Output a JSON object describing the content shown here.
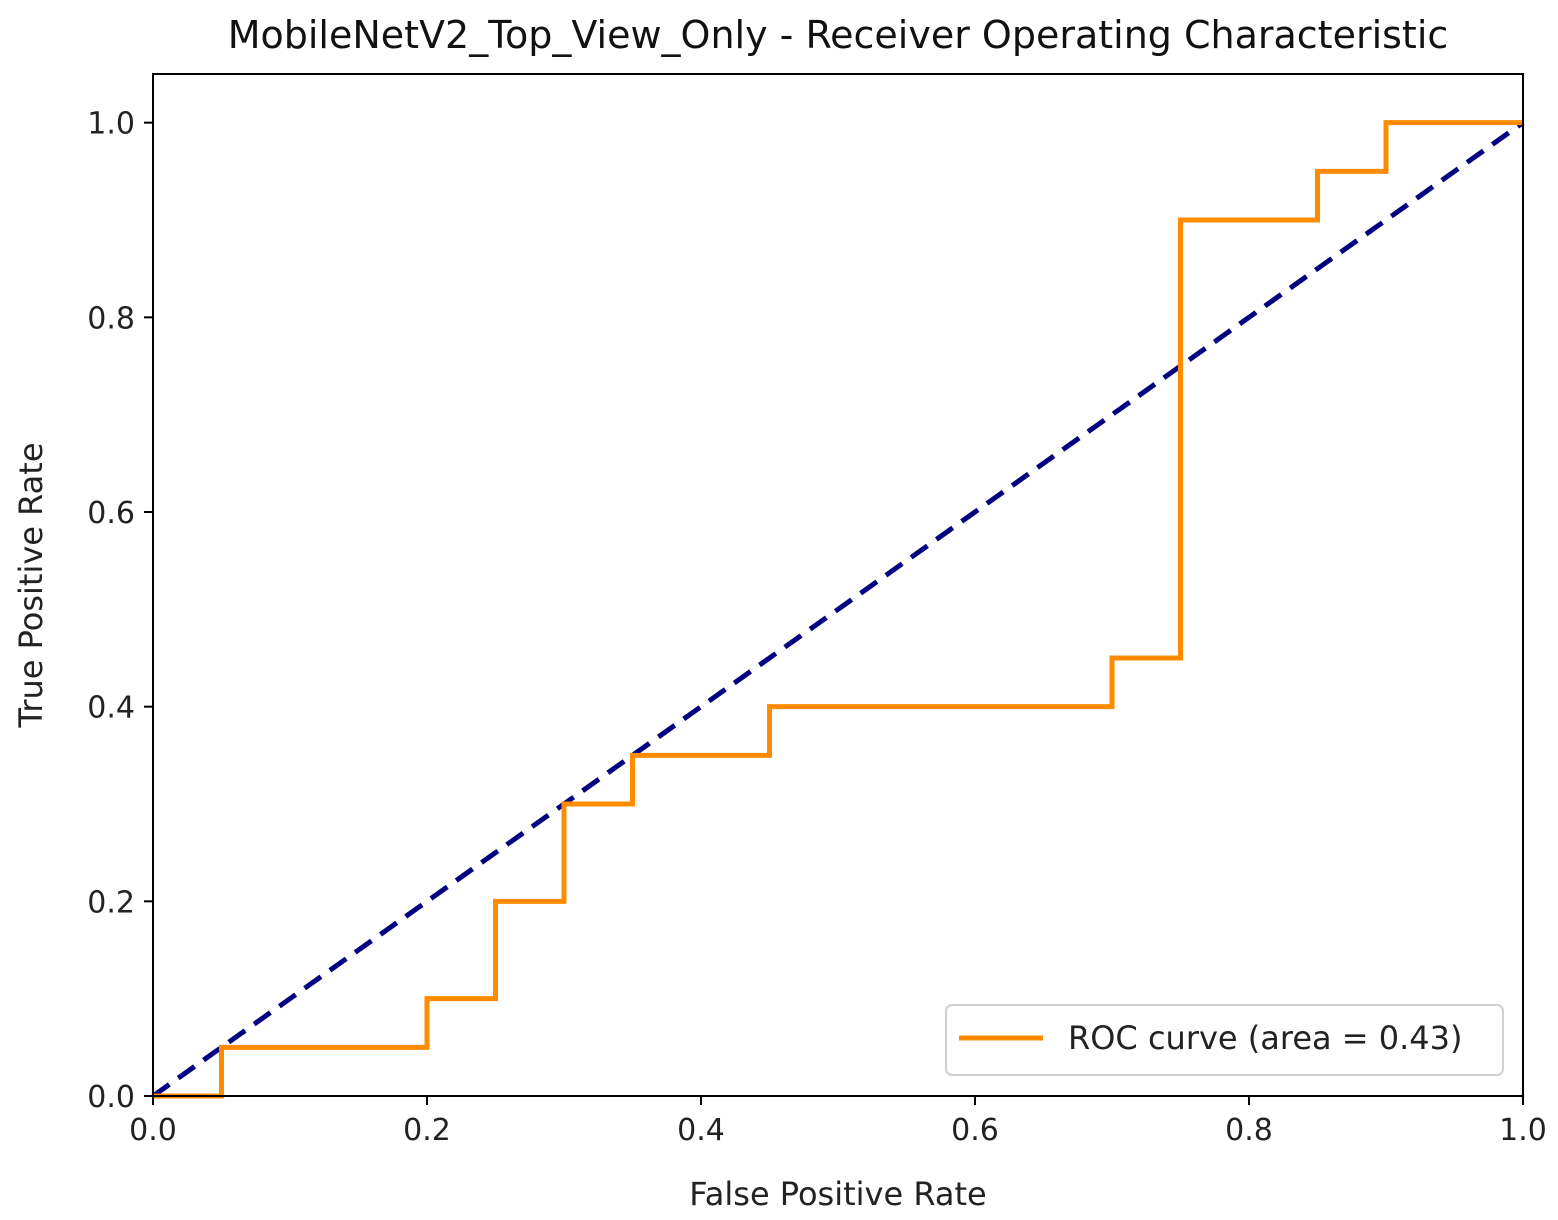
{
  "chart_data": {
    "type": "line",
    "title": "MobileNetV2_Top_View_Only - Receiver Operating Characteristic",
    "xlabel": "False Positive Rate",
    "ylabel": "True Positive Rate",
    "xlim": [
      0.0,
      1.0
    ],
    "ylim": [
      0.0,
      1.05
    ],
    "grid": false,
    "legend_position": "lower-right",
    "x_ticks": [
      "0.0",
      "0.2",
      "0.4",
      "0.6",
      "0.8",
      "1.0"
    ],
    "y_ticks": [
      "0.0",
      "0.2",
      "0.4",
      "0.6",
      "0.8",
      "1.0"
    ],
    "series": [
      {
        "name": "ROC curve (area = 0.43)",
        "color": "#ff8c00",
        "style": "solid",
        "x": [
          0.0,
          0.05,
          0.05,
          0.2,
          0.2,
          0.25,
          0.25,
          0.3,
          0.3,
          0.35,
          0.35,
          0.45,
          0.45,
          0.7,
          0.7,
          0.75,
          0.75,
          0.85,
          0.85,
          0.9,
          0.9,
          1.0
        ],
        "y": [
          0.0,
          0.0,
          0.05,
          0.05,
          0.1,
          0.1,
          0.2,
          0.2,
          0.3,
          0.3,
          0.35,
          0.35,
          0.4,
          0.4,
          0.45,
          0.45,
          0.9,
          0.9,
          0.95,
          0.95,
          1.0,
          1.0
        ]
      },
      {
        "color": "#000080",
        "style": "dashed",
        "x": [
          0.0,
          1.0
        ],
        "y": [
          0.0,
          1.0
        ]
      }
    ]
  }
}
